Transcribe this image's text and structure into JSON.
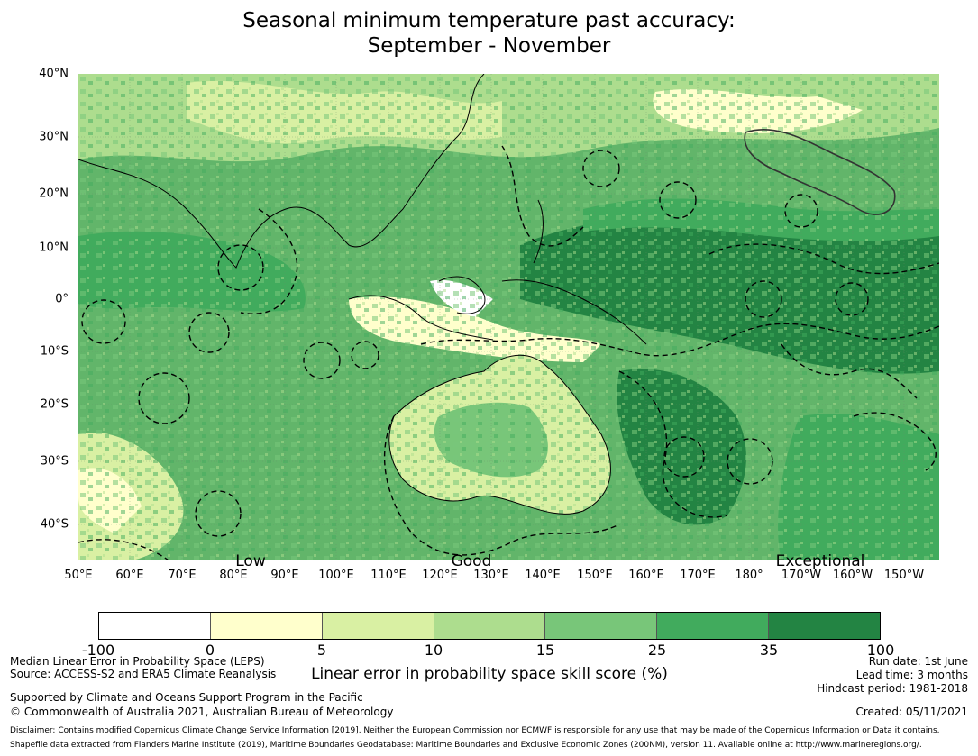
{
  "title": {
    "line1": "Seasonal minimum temperature past accuracy:",
    "line2": "September - November"
  },
  "map": {
    "lat_labels": [
      "40°N",
      "30°N",
      "20°N",
      "10°N",
      "0°",
      "10°S",
      "20°S",
      "30°S",
      "40°S"
    ],
    "lon_labels": [
      "50°E",
      "60°E",
      "70°E",
      "80°E",
      "90°E",
      "100°E",
      "110°E",
      "120°E",
      "130°E",
      "140°E",
      "150°E",
      "160°E",
      "170°E",
      "180°",
      "170°W",
      "160°W",
      "150°W"
    ],
    "category_labels": [
      "Low",
      "Good",
      "Exceptional"
    ],
    "background_color": "#62b56a",
    "land_outline_color": "#000000",
    "eez_boundary_style": "dashed"
  },
  "colorbar": {
    "ticks": [
      "-100",
      "0",
      "5",
      "10",
      "15",
      "25",
      "35",
      "100"
    ],
    "colors": [
      "#ffffff",
      "#ffffcc",
      "#d9f0a3",
      "#addd8e",
      "#78c679",
      "#41ab5d",
      "#238443"
    ],
    "label": "Linear error in probability space skill score (%)"
  },
  "footer": {
    "left1": "Median Linear Error in Probability Space (LEPS)",
    "left2": "Source: ACCESS-S2 and ERA5 Climate Reanalysis",
    "left3": "Supported by Climate and Oceans Support Program in the Pacific",
    "left4": "© Commonwealth of Australia 2021, Australian Bureau of Meteorology",
    "right1": "Run date: 1st June",
    "right2": "Lead time: 3 months",
    "right3": "Hindcast period: 1981-2018",
    "right4": "Created: 05/11/2021",
    "disclaimer1": "Disclaimer: Contains modified Copernicus Climate Change Service Information [2019]. Neither the European Commission nor ECMWF is responsible for any use that may be made of the Copernicus Information or Data it contains.",
    "disclaimer2": "Shapefile data extracted from Flanders Marine Institute (2019), Maritime Boundaries Geodatabase: Maritime Boundaries and Exclusive Economic Zones (200NM), version 11. Available online at http://www.marineregions.org/."
  }
}
